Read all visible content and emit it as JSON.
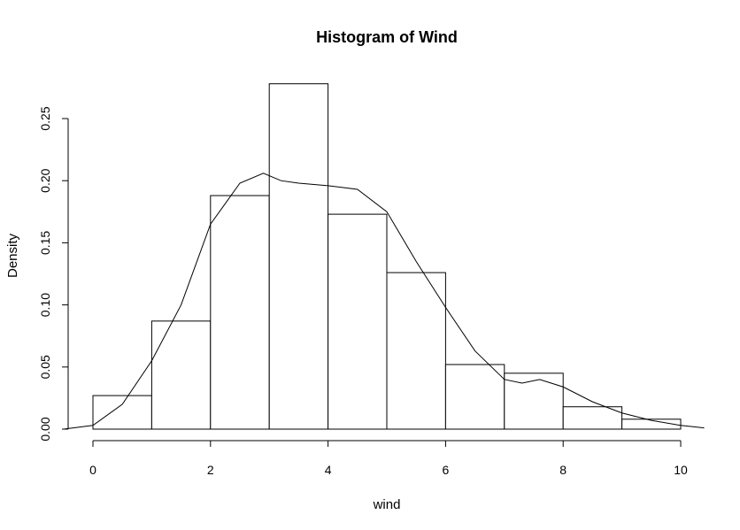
{
  "chart_data": {
    "type": "bar",
    "title": "Histogram of Wind",
    "xlabel": "wind",
    "ylabel": "Density",
    "xlim": [
      0,
      10
    ],
    "ylim": [
      0,
      0.25
    ],
    "xticks": [
      0,
      2,
      4,
      6,
      8,
      10
    ],
    "xtick_labels": [
      "0",
      "2",
      "4",
      "6",
      "8",
      "10"
    ],
    "yticks": [
      0,
      0.05,
      0.1,
      0.15,
      0.2,
      0.25
    ],
    "ytick_labels": [
      "0.00",
      "0.05",
      "0.10",
      "0.15",
      "0.20",
      "0.25"
    ],
    "grid": false,
    "legend": "none",
    "bins": [
      {
        "from": 0,
        "to": 1,
        "density": 0.027
      },
      {
        "from": 1,
        "to": 2,
        "density": 0.087
      },
      {
        "from": 2,
        "to": 3,
        "density": 0.188
      },
      {
        "from": 3,
        "to": 4,
        "density": 0.278
      },
      {
        "from": 4,
        "to": 5,
        "density": 0.173
      },
      {
        "from": 5,
        "to": 6,
        "density": 0.126
      },
      {
        "from": 6,
        "to": 7,
        "density": 0.052
      },
      {
        "from": 7,
        "to": 8,
        "density": 0.045
      },
      {
        "from": 8,
        "to": 9,
        "density": 0.018
      },
      {
        "from": 9,
        "to": 10,
        "density": 0.008
      }
    ],
    "density_curve": {
      "x": [
        -0.5,
        0,
        0.5,
        1,
        1.5,
        2,
        2.5,
        2.9,
        3.2,
        3.5,
        4,
        4.5,
        5,
        5.5,
        6,
        6.5,
        7,
        7.3,
        7.6,
        8,
        8.5,
        9,
        9.5,
        10,
        10.4
      ],
      "y": [
        0.0,
        0.003,
        0.02,
        0.055,
        0.1,
        0.165,
        0.198,
        0.206,
        0.2,
        0.198,
        0.196,
        0.193,
        0.175,
        0.135,
        0.098,
        0.063,
        0.04,
        0.037,
        0.04,
        0.034,
        0.022,
        0.013,
        0.007,
        0.003,
        0.001
      ]
    }
  }
}
